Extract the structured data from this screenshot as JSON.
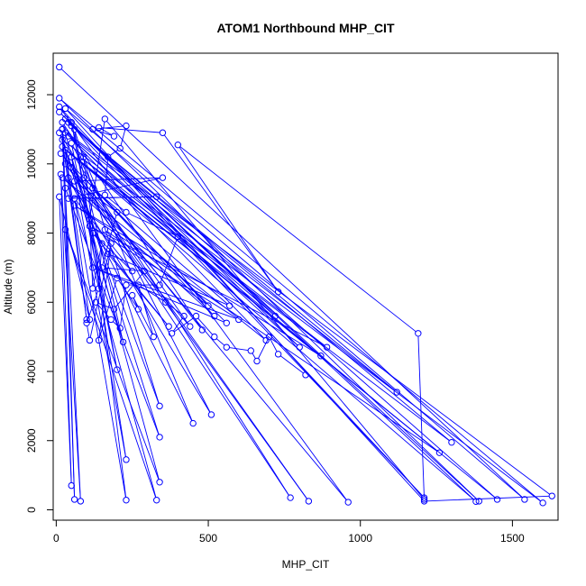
{
  "chart_data": {
    "type": "line",
    "title": "ATOM1 Northbound MHP_CIT",
    "xlabel": "MHP_CIT",
    "ylabel": "Altitude (m)",
    "xlim": [
      -10,
      1650
    ],
    "ylim": [
      -300,
      13200
    ],
    "x_ticks": [
      0,
      500,
      1000,
      1500
    ],
    "y_ticks": [
      0,
      2000,
      4000,
      6000,
      8000,
      10000,
      12000
    ],
    "marker": "open-circle",
    "grid": false,
    "series": [
      {
        "color": "#0000ff",
        "points": [
          [
            10,
            12800
          ],
          [
            1540,
            300
          ],
          [
            30,
            11600
          ],
          [
            1210,
            250
          ],
          [
            1630,
            400
          ],
          [
            20,
            11000
          ],
          [
            100,
            5500
          ],
          [
            20,
            10700
          ],
          [
            1600,
            200
          ],
          [
            10,
            11900
          ],
          [
            1390,
            250
          ],
          [
            40,
            11200
          ],
          [
            1450,
            300
          ],
          [
            20,
            10500
          ],
          [
            1380,
            240
          ],
          [
            30,
            11300
          ],
          [
            1210,
            350
          ],
          [
            10,
            11650
          ],
          [
            960,
            220
          ],
          [
            30,
            10000
          ],
          [
            830,
            250
          ],
          [
            50,
            9900
          ],
          [
            770,
            350
          ],
          [
            10,
            10900
          ],
          [
            340,
            3000
          ],
          [
            60,
            11000
          ],
          [
            230,
            1450
          ],
          [
            50,
            10200
          ],
          [
            340,
            2100
          ],
          [
            30,
            9300
          ],
          [
            60,
            300
          ],
          [
            20,
            11000
          ],
          [
            80,
            250
          ],
          [
            15,
            9700
          ],
          [
            50,
            700
          ],
          [
            10,
            9050
          ],
          [
            110,
            5500
          ],
          [
            30,
            10400
          ],
          [
            220,
            4850
          ],
          [
            50,
            11200
          ],
          [
            200,
            4050
          ],
          [
            50,
            10600
          ],
          [
            510,
            2750
          ],
          [
            40,
            9600
          ],
          [
            450,
            2500
          ],
          [
            90,
            10200
          ],
          [
            230,
            280
          ],
          [
            60,
            9000
          ],
          [
            330,
            280
          ],
          [
            30,
            8100
          ],
          [
            340,
            800
          ],
          [
            20,
            11200
          ],
          [
            480,
            5200
          ],
          [
            15,
            10300
          ],
          [
            520,
            5600
          ],
          [
            20,
            9600
          ],
          [
            690,
            4900
          ],
          [
            40,
            10800
          ],
          [
            720,
            5600
          ],
          [
            10,
            11500
          ],
          [
            800,
            4700
          ],
          [
            30,
            10900
          ],
          [
            1120,
            3400
          ],
          [
            50,
            11100
          ],
          [
            1300,
            1950
          ],
          [
            30,
            10400
          ],
          [
            1260,
            1650
          ],
          [
            60,
            8800
          ],
          [
            870,
            4450
          ],
          [
            80,
            10200
          ],
          [
            890,
            4700
          ],
          [
            110,
            8200
          ],
          [
            600,
            5500
          ],
          [
            120,
            7000
          ],
          [
            560,
            5400
          ],
          [
            90,
            9600
          ],
          [
            500,
            5900
          ],
          [
            160,
            8100
          ],
          [
            440,
            5300
          ],
          [
            120,
            9300
          ],
          [
            570,
            5900
          ],
          [
            170,
            7400
          ],
          [
            370,
            5300
          ],
          [
            120,
            8000
          ],
          [
            250,
            6900
          ],
          [
            60,
            9000
          ],
          [
            330,
            9050
          ],
          [
            40,
            9000
          ],
          [
            350,
            9600
          ],
          [
            60,
            9500
          ],
          [
            200,
            8600
          ],
          [
            150,
            7000
          ],
          [
            290,
            6900
          ],
          [
            190,
            5800
          ],
          [
            130,
            6000
          ],
          [
            180,
            5500
          ],
          [
            210,
            5250
          ],
          [
            230,
            6500
          ],
          [
            340,
            6500
          ],
          [
            400,
            7900
          ],
          [
            230,
            8600
          ],
          [
            160,
            9100
          ],
          [
            170,
            10200
          ],
          [
            210,
            10450
          ],
          [
            230,
            11100
          ],
          [
            120,
            11000
          ],
          [
            190,
            10800
          ],
          [
            140,
            11050
          ],
          [
            350,
            10900
          ],
          [
            730,
            6300
          ],
          [
            400,
            10550
          ],
          [
            1190,
            5100
          ],
          [
            1210,
            300
          ],
          [
            160,
            11300
          ],
          [
            110,
            8400
          ],
          [
            120,
            6400
          ],
          [
            150,
            7700
          ],
          [
            140,
            6400
          ],
          [
            100,
            5400
          ],
          [
            110,
            4900
          ],
          [
            180,
            7700
          ],
          [
            140,
            4900
          ],
          [
            200,
            6700
          ],
          [
            270,
            5800
          ],
          [
            250,
            6200
          ],
          [
            320,
            5000
          ],
          [
            270,
            6500
          ],
          [
            360,
            6000
          ],
          [
            420,
            5600
          ],
          [
            380,
            5100
          ],
          [
            460,
            5600
          ],
          [
            520,
            5000
          ],
          [
            560,
            4700
          ],
          [
            640,
            4600
          ],
          [
            660,
            4300
          ],
          [
            700,
            5000
          ],
          [
            730,
            4500
          ],
          [
            820,
            3900
          ]
        ]
      }
    ]
  }
}
